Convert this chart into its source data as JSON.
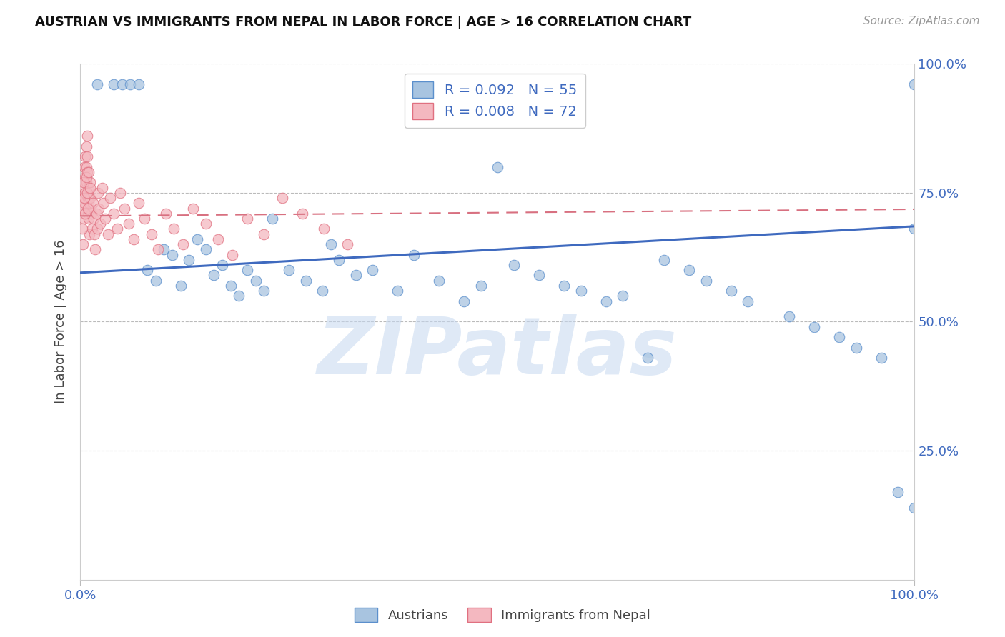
{
  "title": "AUSTRIAN VS IMMIGRANTS FROM NEPAL IN LABOR FORCE | AGE > 16 CORRELATION CHART",
  "source": "Source: ZipAtlas.com",
  "ylabel": "In Labor Force | Age > 16",
  "xlim": [
    0.0,
    1.0
  ],
  "ylim": [
    0.0,
    1.0
  ],
  "xtick_labels": [
    "0.0%",
    "100.0%"
  ],
  "ytick_labels": [
    "25.0%",
    "50.0%",
    "75.0%",
    "100.0%"
  ],
  "ytick_positions": [
    0.25,
    0.5,
    0.75,
    1.0
  ],
  "legend_R1": "0.092",
  "legend_N1": "55",
  "legend_R2": "0.008",
  "legend_N2": "72",
  "color_austrian": "#a8c4e0",
  "color_nepal": "#f4b8c0",
  "edge_austrian": "#5b8fcc",
  "edge_nepal": "#e07080",
  "trendline_austrian": "#3f6abf",
  "trendline_nepal": "#d87080",
  "watermark": "ZIPatlas",
  "watermark_color": "#c5d8f0",
  "aus_trendline_y0": 0.595,
  "aus_trendline_y1": 0.685,
  "nep_trendline_y0": 0.705,
  "nep_trendline_y1": 0.718,
  "aus_x": [
    0.02,
    0.04,
    0.05,
    0.06,
    0.07,
    0.08,
    0.09,
    0.1,
    0.11,
    0.12,
    0.13,
    0.14,
    0.15,
    0.16,
    0.17,
    0.18,
    0.19,
    0.2,
    0.21,
    0.22,
    0.23,
    0.25,
    0.27,
    0.29,
    0.3,
    0.31,
    0.33,
    0.35,
    0.38,
    0.4,
    0.43,
    0.46,
    0.48,
    0.5,
    0.52,
    0.55,
    0.58,
    0.6,
    0.63,
    0.65,
    0.68,
    0.7,
    0.73,
    0.75,
    0.78,
    0.8,
    0.85,
    0.88,
    0.91,
    0.93,
    0.96,
    0.98,
    1.0,
    1.0,
    1.0
  ],
  "aus_y": [
    0.96,
    0.96,
    0.96,
    0.96,
    0.96,
    0.6,
    0.58,
    0.64,
    0.63,
    0.57,
    0.62,
    0.66,
    0.64,
    0.59,
    0.61,
    0.57,
    0.55,
    0.6,
    0.58,
    0.56,
    0.7,
    0.6,
    0.58,
    0.56,
    0.65,
    0.62,
    0.59,
    0.6,
    0.56,
    0.63,
    0.58,
    0.54,
    0.57,
    0.8,
    0.61,
    0.59,
    0.57,
    0.56,
    0.54,
    0.55,
    0.43,
    0.62,
    0.6,
    0.58,
    0.56,
    0.54,
    0.51,
    0.49,
    0.47,
    0.45,
    0.43,
    0.17,
    0.14,
    0.68,
    0.96
  ],
  "nep_x": [
    0.003,
    0.004,
    0.004,
    0.005,
    0.005,
    0.005,
    0.006,
    0.006,
    0.006,
    0.007,
    0.007,
    0.007,
    0.008,
    0.008,
    0.008,
    0.009,
    0.009,
    0.01,
    0.01,
    0.01,
    0.011,
    0.012,
    0.012,
    0.013,
    0.014,
    0.015,
    0.016,
    0.017,
    0.018,
    0.019,
    0.02,
    0.021,
    0.022,
    0.024,
    0.026,
    0.028,
    0.03,
    0.033,
    0.036,
    0.04,
    0.044,
    0.048,
    0.053,
    0.058,
    0.064,
    0.07,
    0.077,
    0.085,
    0.093,
    0.102,
    0.112,
    0.123,
    0.135,
    0.15,
    0.165,
    0.182,
    0.2,
    0.22,
    0.242,
    0.266,
    0.292,
    0.32,
    0.002,
    0.003,
    0.004,
    0.005,
    0.006,
    0.007,
    0.008,
    0.009,
    0.01,
    0.012
  ],
  "nep_y": [
    0.72,
    0.74,
    0.7,
    0.8,
    0.76,
    0.73,
    0.82,
    0.78,
    0.75,
    0.84,
    0.8,
    0.77,
    0.86,
    0.82,
    0.79,
    0.74,
    0.71,
    0.76,
    0.73,
    0.7,
    0.67,
    0.77,
    0.74,
    0.71,
    0.68,
    0.73,
    0.7,
    0.67,
    0.64,
    0.71,
    0.68,
    0.75,
    0.72,
    0.69,
    0.76,
    0.73,
    0.7,
    0.67,
    0.74,
    0.71,
    0.68,
    0.75,
    0.72,
    0.69,
    0.66,
    0.73,
    0.7,
    0.67,
    0.64,
    0.71,
    0.68,
    0.65,
    0.72,
    0.69,
    0.66,
    0.63,
    0.7,
    0.67,
    0.74,
    0.71,
    0.68,
    0.65,
    0.68,
    0.65,
    0.77,
    0.74,
    0.71,
    0.78,
    0.75,
    0.72,
    0.79,
    0.76
  ]
}
